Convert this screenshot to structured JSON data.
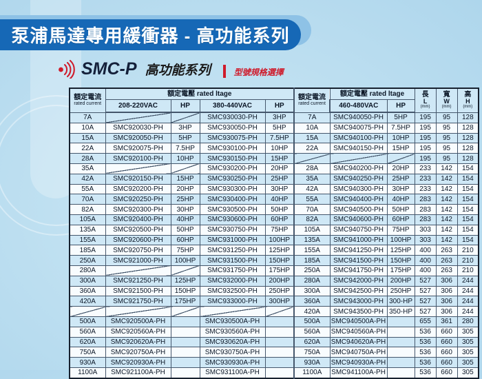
{
  "page": {
    "banner_title": "泵浦馬達專用緩衝器 - 高功能系列",
    "brand_name": "SMC-P",
    "series_name": "高功能系列",
    "tagline": "型號規格選擇"
  },
  "colors": {
    "banner_blue": "#1668b6",
    "banner_back_blue": "#8ec2e6",
    "page_background": "#b7dcee",
    "row_shaded": "#cfe8f6",
    "row_plain": "#f8fcfe",
    "accent_red": "#cf1b2b",
    "table_border": "#44566b"
  },
  "table": {
    "headers": {
      "rated_current_zh": "額定電流",
      "rated_current_en": "rated current",
      "rated_voltage_left": "額定電壓 rated ltage",
      "rated_voltage_right": "額定電壓 rated ltage",
      "col_208": "208-220VAC",
      "col_380": "380-440VAC",
      "col_460": "460-480VAC",
      "hp": "HP",
      "len_zh": "長",
      "len_letter": "L",
      "len_unit": "(mm)",
      "wid_zh": "寬",
      "wid_letter": "W",
      "wid_unit": "(mm)",
      "hgt_zh": "高",
      "hgt_letter": "H",
      "hgt_unit": "(mm)"
    },
    "rows": [
      {
        "c": [
          "7A",
          "",
          "",
          "SMC930030-PH",
          "3HP",
          "7A",
          "SMC940050-PH",
          "5HP",
          "195",
          "95",
          "128"
        ],
        "d": [
          1,
          2
        ]
      },
      {
        "c": [
          "10A",
          "SMC920030-PH",
          "3HP",
          "SMC930050-PH",
          "5HP",
          "10A",
          "SMC940075-PH",
          "7.5HP",
          "195",
          "95",
          "128"
        ],
        "d": []
      },
      {
        "c": [
          "15A",
          "SMC920050-PH",
          "5HP",
          "SMC930075-PH",
          "7.5HP",
          "15A",
          "SMC940100-PH",
          "10HP",
          "195",
          "95",
          "128"
        ],
        "d": []
      },
      {
        "c": [
          "22A",
          "SMC920075-PH",
          "7.5HP",
          "SMC930100-PH",
          "10HP",
          "22A",
          "SMC940150-PH",
          "15HP",
          "195",
          "95",
          "128"
        ],
        "d": []
      },
      {
        "c": [
          "28A",
          "SMC920100-PH",
          "10HP",
          "SMC930150-PH",
          "15HP",
          "",
          "",
          "",
          "195",
          "95",
          "128"
        ],
        "d": [
          5,
          6,
          7
        ]
      },
      {
        "c": [
          "35A",
          "",
          "",
          "SMC930200-PH",
          "20HP",
          "28A",
          "SMC940200-PH",
          "20HP",
          "233",
          "142",
          "154"
        ],
        "d": [
          1,
          2
        ]
      },
      {
        "c": [
          "42A",
          "SMC920150-PH",
          "15HP",
          "SMC930250-PH",
          "25HP",
          "35A",
          "SMC940250-PH",
          "25HP",
          "233",
          "142",
          "154"
        ],
        "d": []
      },
      {
        "c": [
          "55A",
          "SMC920200-PH",
          "20HP",
          "SMC930300-PH",
          "30HP",
          "42A",
          "SMC940300-PH",
          "30HP",
          "233",
          "142",
          "154"
        ],
        "d": []
      },
      {
        "c": [
          "70A",
          "SMC920250-PH",
          "25HP",
          "SMC930400-PH",
          "40HP",
          "55A",
          "SMC940400-PH",
          "40HP",
          "283",
          "142",
          "154"
        ],
        "d": []
      },
      {
        "c": [
          "82A",
          "SMC920300-PH",
          "30HP",
          "SMC930500-PH",
          "50HP",
          "70A",
          "SMC940500-PH",
          "50HP",
          "283",
          "142",
          "154"
        ],
        "d": []
      },
      {
        "c": [
          "105A",
          "SMC920400-PH",
          "40HP",
          "SMC930600-PH",
          "60HP",
          "82A",
          "SMC940600-PH",
          "60HP",
          "283",
          "142",
          "154"
        ],
        "d": []
      },
      {
        "c": [
          "135A",
          "SMC920500-PH",
          "50HP",
          "SMC930750-PH",
          "75HP",
          "105A",
          "SMC940750-PH",
          "75HP",
          "303",
          "142",
          "154"
        ],
        "d": []
      },
      {
        "c": [
          "155A",
          "SMC920600-PH",
          "60HP",
          "SMC931000-PH",
          "100HP",
          "135A",
          "SMC941000-PH",
          "100HP",
          "303",
          "142",
          "154"
        ],
        "d": []
      },
      {
        "c": [
          "185A",
          "SMC920750-PH",
          "75HP",
          "SMC931250-PH",
          "125HP",
          "155A",
          "SMC941250-PH",
          "125HP",
          "400",
          "263",
          "210"
        ],
        "d": []
      },
      {
        "c": [
          "250A",
          "SMC921000-PH",
          "100HP",
          "SMC931500-PH",
          "150HP",
          "185A",
          "SMC941500-PH",
          "150HP",
          "400",
          "263",
          "210"
        ],
        "d": []
      },
      {
        "c": [
          "280A",
          "",
          "",
          "SMC931750-PH",
          "175HP",
          "250A",
          "SMC941750-PH",
          "175HP",
          "400",
          "263",
          "210"
        ],
        "d": [
          1,
          2
        ]
      },
      {
        "c": [
          "300A",
          "SMC921250-PH",
          "125HP",
          "SMC932000-PH",
          "200HP",
          "280A",
          "SMC942000-PH",
          "200HP",
          "527",
          "306",
          "244"
        ],
        "d": []
      },
      {
        "c": [
          "360A",
          "SMC921500-PH",
          "150HP",
          "SMC932500-PH",
          "250HP",
          "300A",
          "SMC942500-PH",
          "250HP",
          "527",
          "306",
          "244"
        ],
        "d": []
      },
      {
        "c": [
          "420A",
          "SMC921750-PH",
          "175HP",
          "SMC933000-PH",
          "300HP",
          "360A",
          "SMC943000-PH",
          "300-HP",
          "527",
          "306",
          "244"
        ],
        "d": []
      },
      {
        "c": [
          "",
          "",
          "",
          "",
          "",
          "420A",
          "SMC943500-PH",
          "350-HP",
          "527",
          "306",
          "244"
        ],
        "d": [
          0,
          1,
          2,
          3,
          4
        ]
      },
      {
        "c": [
          "500A",
          "SMC920500A-PH",
          "",
          "SMC930500A-PH",
          "",
          "500A",
          "SMC940500A-PH",
          "",
          "655",
          "361",
          "280"
        ],
        "d": []
      },
      {
        "c": [
          "560A",
          "SMC920560A-PH",
          "",
          "SMC930560A-PH",
          "",
          "560A",
          "SMC940560A-PH",
          "",
          "536",
          "660",
          "305"
        ],
        "d": []
      },
      {
        "c": [
          "620A",
          "SMC920620A-PH",
          "",
          "SMC930620A-PH",
          "",
          "620A",
          "SMC940620A-PH",
          "",
          "536",
          "660",
          "305"
        ],
        "d": []
      },
      {
        "c": [
          "750A",
          "SMC920750A-PH",
          "",
          "SMC930750A-PH",
          "",
          "750A",
          "SMC940750A-PH",
          "",
          "536",
          "660",
          "305"
        ],
        "d": []
      },
      {
        "c": [
          "930A",
          "SMC920930A-PH",
          "",
          "SMC930930A-PH",
          "",
          "930A",
          "SMC940930A-PH",
          "",
          "536",
          "660",
          "305"
        ],
        "d": []
      },
      {
        "c": [
          "1100A",
          "SMC921100A-PH",
          "",
          "SMC931100A-PH",
          "",
          "1100A",
          "SMC941100A-PH",
          "",
          "536",
          "660",
          "305"
        ],
        "d": []
      }
    ]
  }
}
